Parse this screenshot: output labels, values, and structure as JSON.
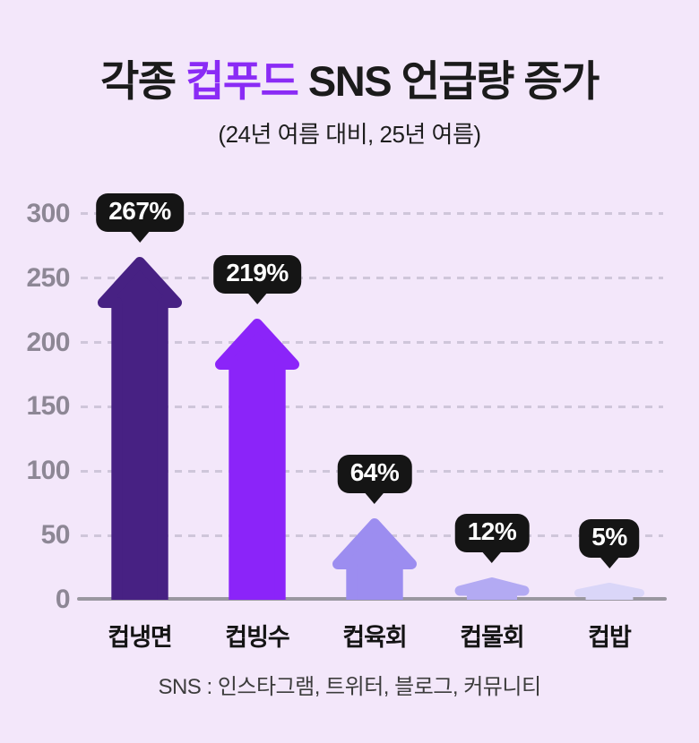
{
  "poster": {
    "title_prefix": "각종 ",
    "title_highlight": "컵푸드",
    "title_suffix": " SNS 언급량 증가",
    "subtitle": "(24년 여름 대비, 25년 여름)",
    "footer_note": "SNS : 인스타그램, 트위터, 블로그, 커뮤니티"
  },
  "colors": {
    "background": "#f3e7fa",
    "title_highlight": "#8a2bf5",
    "callout_bg": "#151515",
    "callout_text": "#ffffff",
    "axis_text": "#8d8795",
    "baseline": "#9a97a0",
    "gridline": "#cfc6da"
  },
  "chart_data": {
    "type": "bar",
    "title": "각종 컵푸드 SNS 언급량 증가",
    "subtitle": "(24년 여름 대비, 25년 여름)",
    "categories": [
      "컵냉면",
      "컵빙수",
      "컵육회",
      "컵물회",
      "컵밥"
    ],
    "values": [
      267,
      219,
      64,
      12,
      5
    ],
    "value_labels": [
      "267%",
      "219%",
      "64%",
      "12%",
      "5%"
    ],
    "bar_colors": [
      "#472183",
      "#8b24f9",
      "#9c8df0",
      "#b3aaf3",
      "#dad6f8"
    ],
    "bar_style": "upward-arrow",
    "xlabel": "",
    "ylabel": "",
    "ylim": [
      0,
      300
    ],
    "yticks": [
      0,
      50,
      100,
      150,
      200,
      250,
      300
    ],
    "grid": "horizontal-dashed",
    "legend": "none",
    "annotation": "SNS : 인스타그램, 트위터, 블로그, 커뮤니티"
  }
}
